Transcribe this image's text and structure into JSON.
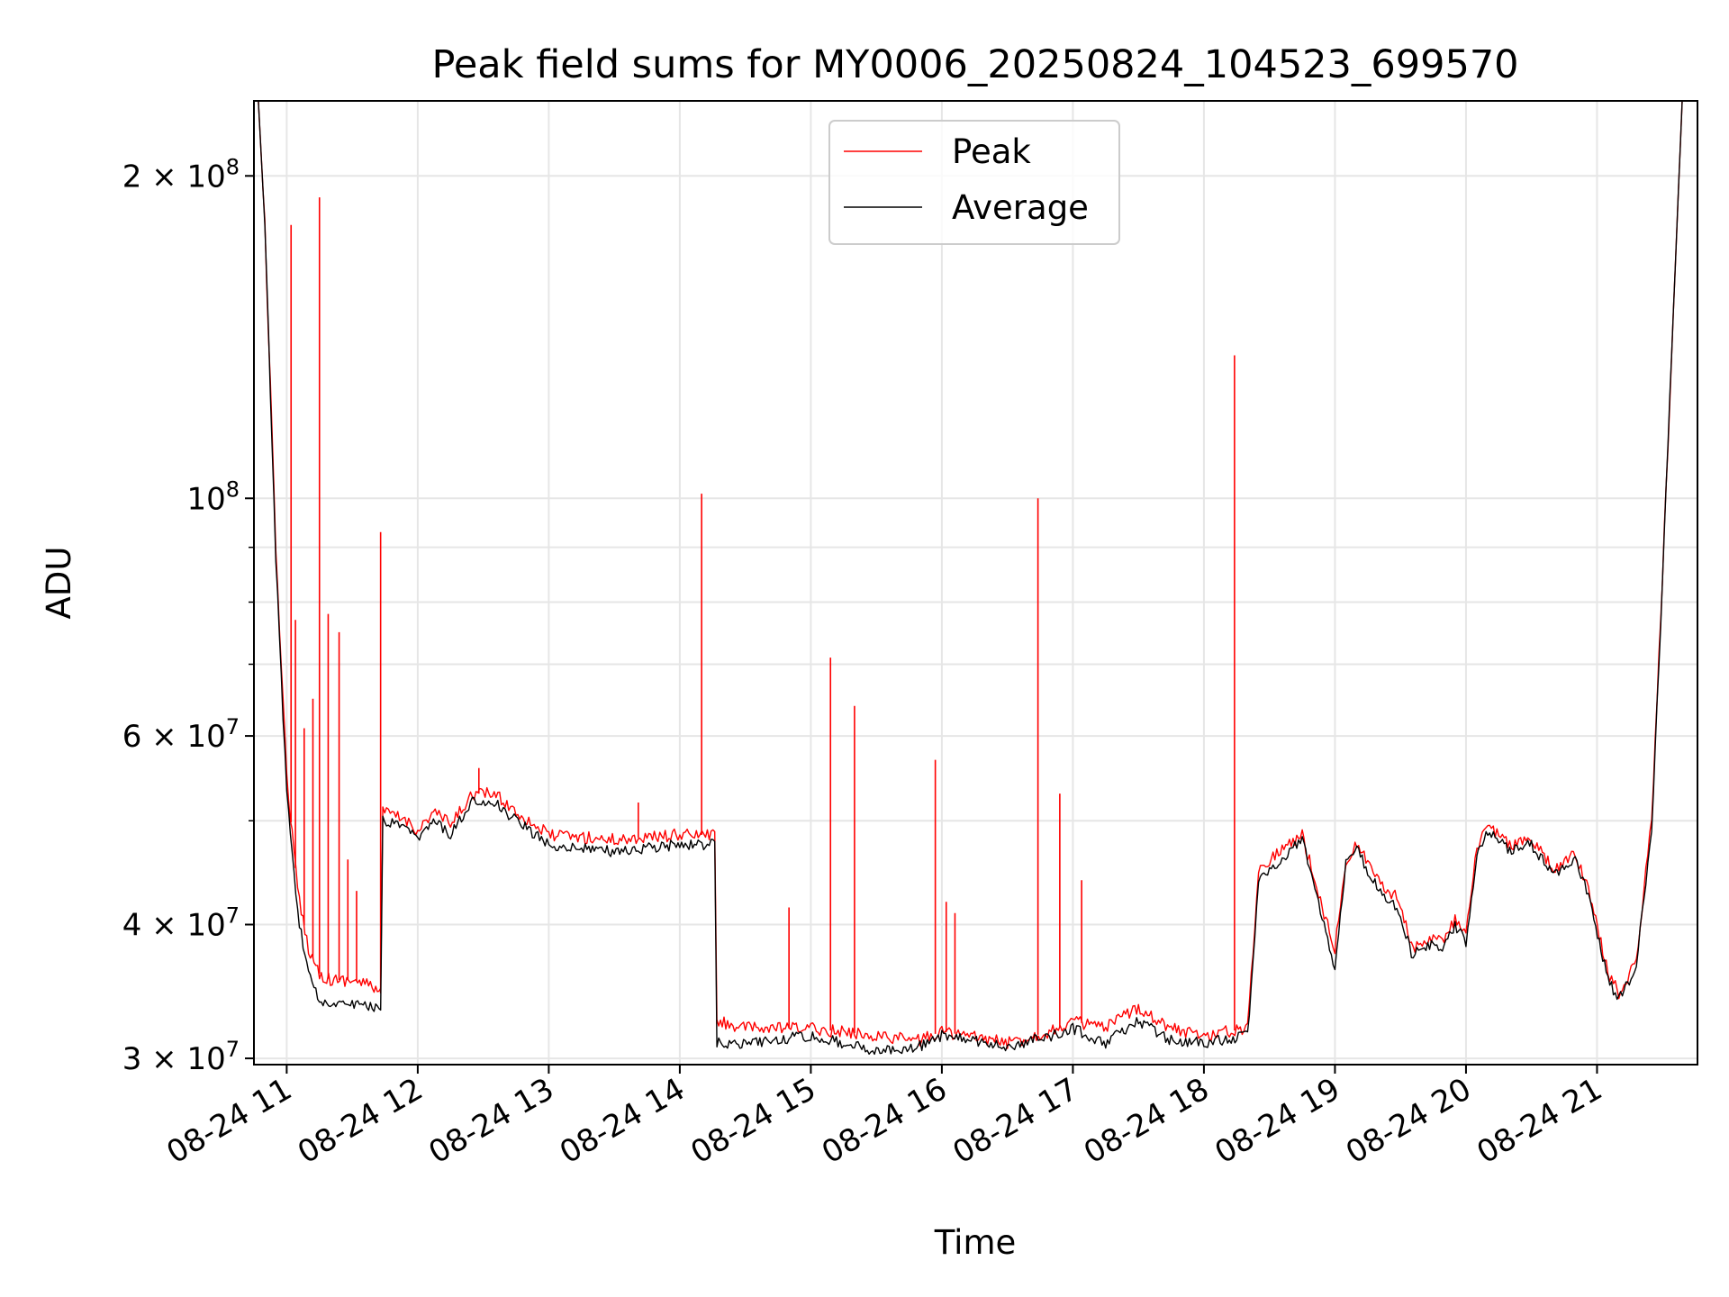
{
  "chart_data": {
    "type": "line",
    "title": "Peak field sums for MY0006_20250824_104523_699570",
    "xlabel": "Time",
    "ylabel": "ADU",
    "yscale": "log",
    "grid": true,
    "legend_placement": "upper center",
    "xlim": [
      "2025-08-24 10:45",
      "2025-08-24 21:46"
    ],
    "ylim": [
      29600000,
      235000000
    ],
    "x_ticks": [
      {
        "value": "2025-08-24 11:00",
        "label": "08-24 11"
      },
      {
        "value": "2025-08-24 12:00",
        "label": "08-24 12"
      },
      {
        "value": "2025-08-24 13:00",
        "label": "08-24 13"
      },
      {
        "value": "2025-08-24 14:00",
        "label": "08-24 14"
      },
      {
        "value": "2025-08-24 15:00",
        "label": "08-24 15"
      },
      {
        "value": "2025-08-24 16:00",
        "label": "08-24 16"
      },
      {
        "value": "2025-08-24 17:00",
        "label": "08-24 17"
      },
      {
        "value": "2025-08-24 18:00",
        "label": "08-24 18"
      },
      {
        "value": "2025-08-24 19:00",
        "label": "08-24 19"
      },
      {
        "value": "2025-08-24 20:00",
        "label": "08-24 20"
      },
      {
        "value": "2025-08-24 21:00",
        "label": "08-24 21"
      }
    ],
    "y_major_ticks": [
      {
        "value": 30000000,
        "mant": "3",
        "exp": "7"
      },
      {
        "value": 40000000,
        "mant": "4",
        "exp": "7"
      },
      {
        "value": 60000000,
        "mant": "6",
        "exp": "7"
      },
      {
        "value": 100000000,
        "mant": "",
        "exp": "8"
      },
      {
        "value": 200000000,
        "mant": "2",
        "exp": "8"
      }
    ],
    "y_minor_gridlines": [
      50000000,
      70000000,
      80000000,
      90000000
    ],
    "series": [
      {
        "name": "Peak",
        "color": "#ff0000",
        "points": [
          [
            "2025-08-24 10:47",
            235000000
          ],
          [
            "2025-08-24 10:50",
            180000000
          ],
          [
            "2025-08-24 10:55",
            90000000
          ],
          [
            "2025-08-24 11:00",
            55000000
          ],
          [
            "2025-08-24 11:05",
            43000000
          ],
          [
            "2025-08-24 11:10",
            38000000
          ],
          [
            "2025-08-24 11:15",
            36000000
          ],
          [
            "2025-08-24 11:20",
            35500000
          ],
          [
            "2025-08-24 11:30",
            35500000
          ],
          [
            "2025-08-24 11:40",
            35000000
          ],
          [
            "2025-08-24 11:43",
            34500000
          ],
          [
            "2025-08-24 11:44",
            51000000
          ],
          [
            "2025-08-24 11:50",
            50500000
          ],
          [
            "2025-08-24 11:55",
            50000000
          ],
          [
            "2025-08-24 12:00",
            49000000
          ],
          [
            "2025-08-24 12:08",
            51000000
          ],
          [
            "2025-08-24 12:15",
            49500000
          ],
          [
            "2025-08-24 12:25",
            53000000
          ],
          [
            "2025-08-24 12:35",
            53000000
          ],
          [
            "2025-08-24 12:45",
            51000000
          ],
          [
            "2025-08-24 13:00",
            48500000
          ],
          [
            "2025-08-24 13:30",
            48000000
          ],
          [
            "2025-08-24 14:00",
            48500000
          ],
          [
            "2025-08-24 14:16",
            48500000
          ],
          [
            "2025-08-24 14:17",
            32500000
          ],
          [
            "2025-08-24 14:30",
            32000000
          ],
          [
            "2025-08-24 15:00",
            32000000
          ],
          [
            "2025-08-24 15:30",
            31500000
          ],
          [
            "2025-08-24 15:50",
            31200000
          ],
          [
            "2025-08-24 16:00",
            31800000
          ],
          [
            "2025-08-24 16:30",
            31000000
          ],
          [
            "2025-08-24 16:50",
            31800000
          ],
          [
            "2025-08-24 17:00",
            32500000
          ],
          [
            "2025-08-24 17:15",
            32000000
          ],
          [
            "2025-08-24 17:30",
            33500000
          ],
          [
            "2025-08-24 17:45",
            32000000
          ],
          [
            "2025-08-24 18:00",
            31500000
          ],
          [
            "2025-08-24 18:20",
            32000000
          ],
          [
            "2025-08-24 18:25",
            45000000
          ],
          [
            "2025-08-24 18:35",
            47000000
          ],
          [
            "2025-08-24 18:45",
            48500000
          ],
          [
            "2025-08-24 18:55",
            41000000
          ],
          [
            "2025-08-24 19:00",
            38000000
          ],
          [
            "2025-08-24 19:05",
            46000000
          ],
          [
            "2025-08-24 19:10",
            47500000
          ],
          [
            "2025-08-24 19:20",
            44000000
          ],
          [
            "2025-08-24 19:30",
            42000000
          ],
          [
            "2025-08-24 19:35",
            38000000
          ],
          [
            "2025-08-24 19:45",
            39000000
          ],
          [
            "2025-08-24 19:50",
            38500000
          ],
          [
            "2025-08-24 19:55",
            40500000
          ],
          [
            "2025-08-24 20:00",
            39000000
          ],
          [
            "2025-08-24 20:05",
            47000000
          ],
          [
            "2025-08-24 20:10",
            49500000
          ],
          [
            "2025-08-24 20:20",
            47500000
          ],
          [
            "2025-08-24 20:30",
            48000000
          ],
          [
            "2025-08-24 20:40",
            45000000
          ],
          [
            "2025-08-24 20:50",
            46500000
          ],
          [
            "2025-08-24 20:57",
            42500000
          ],
          [
            "2025-08-24 21:05",
            36000000
          ],
          [
            "2025-08-24 21:10",
            34500000
          ],
          [
            "2025-08-24 21:18",
            37000000
          ],
          [
            "2025-08-24 21:25",
            50000000
          ],
          [
            "2025-08-24 21:30",
            85000000
          ],
          [
            "2025-08-24 21:35",
            150000000
          ],
          [
            "2025-08-24 21:39",
            235000000
          ]
        ],
        "spikes": [
          [
            "2025-08-24 11:02",
            180000000
          ],
          [
            "2025-08-24 11:04",
            77000000
          ],
          [
            "2025-08-24 11:08",
            61000000
          ],
          [
            "2025-08-24 11:12",
            65000000
          ],
          [
            "2025-08-24 11:15",
            191000000
          ],
          [
            "2025-08-24 11:19",
            78000000
          ],
          [
            "2025-08-24 11:24",
            75000000
          ],
          [
            "2025-08-24 11:28",
            46000000
          ],
          [
            "2025-08-24 11:32",
            43000000
          ],
          [
            "2025-08-24 11:43",
            93000000
          ],
          [
            "2025-08-24 12:28",
            56000000
          ],
          [
            "2025-08-24 13:41",
            52000000
          ],
          [
            "2025-08-24 14:10",
            101000000
          ],
          [
            "2025-08-24 14:50",
            41500000
          ],
          [
            "2025-08-24 15:09",
            71000000
          ],
          [
            "2025-08-24 15:20",
            64000000
          ],
          [
            "2025-08-24 15:57",
            57000000
          ],
          [
            "2025-08-24 16:02",
            42000000
          ],
          [
            "2025-08-24 16:06",
            41000000
          ],
          [
            "2025-08-24 16:44",
            100000000
          ],
          [
            "2025-08-24 16:54",
            53000000
          ],
          [
            "2025-08-24 17:04",
            44000000
          ],
          [
            "2025-08-24 18:14",
            136000000
          ]
        ]
      },
      {
        "name": "Average",
        "color": "#000000",
        "points": [
          [
            "2025-08-24 10:47",
            235000000
          ],
          [
            "2025-08-24 10:50",
            180000000
          ],
          [
            "2025-08-24 10:55",
            88000000
          ],
          [
            "2025-08-24 11:00",
            53000000
          ],
          [
            "2025-08-24 11:05",
            41000000
          ],
          [
            "2025-08-24 11:10",
            36000000
          ],
          [
            "2025-08-24 11:15",
            34000000
          ],
          [
            "2025-08-24 11:20",
            33800000
          ],
          [
            "2025-08-24 11:30",
            33800000
          ],
          [
            "2025-08-24 11:40",
            33500000
          ],
          [
            "2025-08-24 11:43",
            33000000
          ],
          [
            "2025-08-24 11:44",
            50000000
          ],
          [
            "2025-08-24 11:50",
            49500000
          ],
          [
            "2025-08-24 11:55",
            49000000
          ],
          [
            "2025-08-24 12:00",
            48000000
          ],
          [
            "2025-08-24 12:08",
            50000000
          ],
          [
            "2025-08-24 12:15",
            48500000
          ],
          [
            "2025-08-24 12:25",
            52000000
          ],
          [
            "2025-08-24 12:35",
            52000000
          ],
          [
            "2025-08-24 12:45",
            50000000
          ],
          [
            "2025-08-24 13:00",
            47500000
          ],
          [
            "2025-08-24 13:30",
            46800000
          ],
          [
            "2025-08-24 14:00",
            47500000
          ],
          [
            "2025-08-24 14:16",
            47500000
          ],
          [
            "2025-08-24 14:17",
            31000000
          ],
          [
            "2025-08-24 14:30",
            31000000
          ],
          [
            "2025-08-24 15:00",
            31500000
          ],
          [
            "2025-08-24 15:30",
            30500000
          ],
          [
            "2025-08-24 15:50",
            30800000
          ],
          [
            "2025-08-24 16:00",
            31500000
          ],
          [
            "2025-08-24 16:30",
            30800000
          ],
          [
            "2025-08-24 16:50",
            31500000
          ],
          [
            "2025-08-24 17:00",
            32000000
          ],
          [
            "2025-08-24 17:15",
            31000000
          ],
          [
            "2025-08-24 17:30",
            32500000
          ],
          [
            "2025-08-24 17:45",
            31200000
          ],
          [
            "2025-08-24 18:00",
            31000000
          ],
          [
            "2025-08-24 18:20",
            31500000
          ],
          [
            "2025-08-24 18:25",
            44000000
          ],
          [
            "2025-08-24 18:35",
            46000000
          ],
          [
            "2025-08-24 18:45",
            48000000
          ],
          [
            "2025-08-24 18:55",
            40000000
          ],
          [
            "2025-08-24 19:00",
            36500000
          ],
          [
            "2025-08-24 19:05",
            45500000
          ],
          [
            "2025-08-24 19:10",
            47000000
          ],
          [
            "2025-08-24 19:20",
            43000000
          ],
          [
            "2025-08-24 19:30",
            41000000
          ],
          [
            "2025-08-24 19:35",
            37500000
          ],
          [
            "2025-08-24 19:45",
            38500000
          ],
          [
            "2025-08-24 19:50",
            38000000
          ],
          [
            "2025-08-24 19:55",
            40000000
          ],
          [
            "2025-08-24 20:00",
            38500000
          ],
          [
            "2025-08-24 20:05",
            46500000
          ],
          [
            "2025-08-24 20:10",
            49000000
          ],
          [
            "2025-08-24 20:20",
            47000000
          ],
          [
            "2025-08-24 20:30",
            47500000
          ],
          [
            "2025-08-24 20:40",
            44500000
          ],
          [
            "2025-08-24 20:50",
            46000000
          ],
          [
            "2025-08-24 20:57",
            42000000
          ],
          [
            "2025-08-24 21:05",
            35500000
          ],
          [
            "2025-08-24 21:10",
            34000000
          ],
          [
            "2025-08-24 21:18",
            36500000
          ],
          [
            "2025-08-24 21:25",
            49000000
          ],
          [
            "2025-08-24 21:30",
            84000000
          ],
          [
            "2025-08-24 21:35",
            150000000
          ],
          [
            "2025-08-24 21:39",
            235000000
          ]
        ]
      }
    ]
  }
}
